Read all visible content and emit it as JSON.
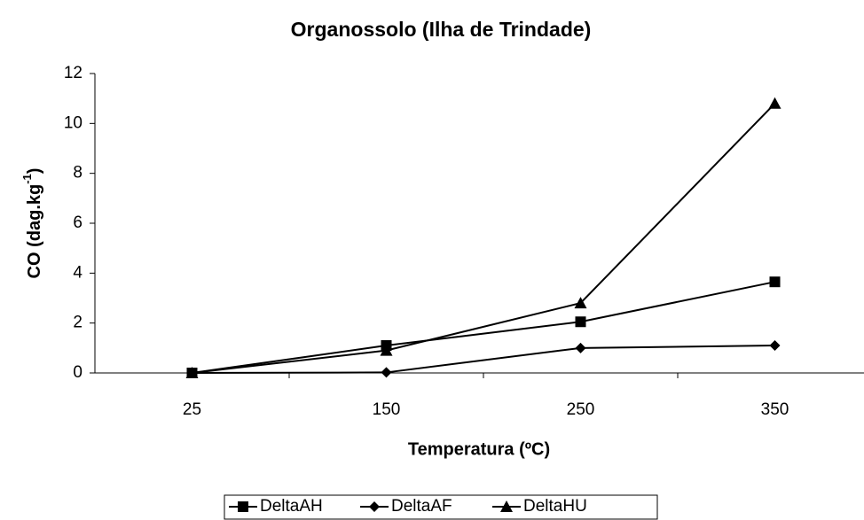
{
  "chart_data": {
    "type": "line",
    "title": "Organossolo (Ilha de Trindade)",
    "x_label": "Temperatura (ºC)",
    "y_label": {
      "text": "CO (dag.kg",
      "superscript": "-1",
      "suffix": ")"
    },
    "categories": [
      "25",
      "150",
      "250",
      "350"
    ],
    "series": [
      {
        "name": "DeltaAH",
        "color": "#000000",
        "marker": "square",
        "values": [
          0,
          1.1,
          2.05,
          3.65
        ]
      },
      {
        "name": "DeltaAF",
        "color": "#000000",
        "marker": "diamond",
        "values": [
          0,
          0.02,
          1.0,
          1.1
        ]
      },
      {
        "name": "DeltaHU",
        "color": "#000000",
        "marker": "triangle",
        "values": [
          0,
          0.9,
          2.8,
          10.8
        ]
      }
    ],
    "ylim": [
      0,
      12
    ],
    "yticks": [
      0,
      2,
      4,
      6,
      8,
      10,
      12
    ],
    "grid": false,
    "legend": "bottom"
  }
}
